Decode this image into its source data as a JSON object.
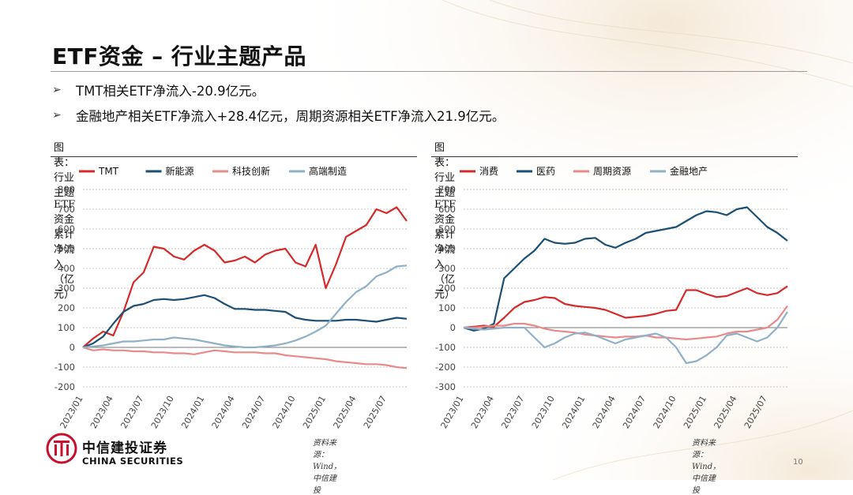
{
  "title": "ETF资金 – 行业主题产品",
  "bullets": [
    "TMT相关ETF净流入-20.9亿元。",
    "金融地产相关ETF净流入+28.4亿元，周期资源相关ETF净流入21.9亿元。"
  ],
  "bullet_icon": "arrow-bullet-icon",
  "logo": {
    "cn": "中信建投证券",
    "en": "CHINA SECURITIES"
  },
  "page_number": "10",
  "colors": {
    "red": "#d42a2a",
    "navy": "#1b4f75",
    "pink": "#e88a8a",
    "lightblue": "#8fb0c6"
  },
  "chart_data": [
    {
      "type": "line",
      "caption": "图表：行业主题ETF资金累计净流入（亿元）",
      "source": "资料来源：Wind，中信建投",
      "x": [
        "2023/01",
        "2023/02",
        "2023/03",
        "2023/04",
        "2023/05",
        "2023/06",
        "2023/07",
        "2023/08",
        "2023/09",
        "2023/10",
        "2023/11",
        "2023/12",
        "2024/01",
        "2024/02",
        "2024/03",
        "2024/04",
        "2024/05",
        "2024/06",
        "2024/07",
        "2024/08",
        "2024/09",
        "2024/10",
        "2024/11",
        "2024/12",
        "2025/01",
        "2025/02",
        "2025/03",
        "2025/04",
        "2025/05",
        "2025/06",
        "2025/07",
        "2025/08",
        "2025/09"
      ],
      "x_ticks": [
        "2023/01",
        "2023/04",
        "2023/07",
        "2023/10",
        "2024/01",
        "2024/04",
        "2024/07",
        "2024/10",
        "2025/01",
        "2025/04",
        "2025/07"
      ],
      "ylim": [
        -200,
        800
      ],
      "yticks": [
        -200,
        -100,
        0,
        100,
        200,
        300,
        400,
        500,
        600,
        700,
        800
      ],
      "legend_position": "top",
      "series": [
        {
          "name": "TMT",
          "color": "#d42a2a",
          "values": [
            0,
            45,
            80,
            60,
            180,
            330,
            380,
            510,
            500,
            460,
            445,
            490,
            520,
            490,
            430,
            440,
            460,
            430,
            470,
            490,
            500,
            430,
            410,
            520,
            300,
            420,
            560,
            590,
            620,
            700,
            680,
            710,
            640
          ]
        },
        {
          "name": "新能源",
          "color": "#1b4f75",
          "values": [
            0,
            20,
            55,
            120,
            180,
            210,
            220,
            240,
            245,
            240,
            245,
            255,
            265,
            250,
            220,
            195,
            195,
            190,
            190,
            185,
            180,
            150,
            140,
            135,
            135,
            135,
            140,
            140,
            135,
            130,
            140,
            150,
            145
          ]
        },
        {
          "name": "科技创新",
          "color": "#e88a8a",
          "values": [
            0,
            -15,
            -10,
            -15,
            -15,
            -20,
            -20,
            -25,
            -25,
            -30,
            -30,
            -35,
            -25,
            -15,
            -20,
            -25,
            -25,
            -25,
            -30,
            -30,
            -40,
            -45,
            -50,
            -55,
            -60,
            -70,
            -75,
            -80,
            -85,
            -85,
            -90,
            -100,
            -105
          ]
        },
        {
          "name": "高端制造",
          "color": "#8fb0c6",
          "values": [
            0,
            5,
            10,
            20,
            30,
            30,
            35,
            40,
            40,
            50,
            45,
            40,
            30,
            20,
            10,
            5,
            0,
            0,
            5,
            10,
            20,
            35,
            55,
            80,
            110,
            170,
            230,
            280,
            310,
            360,
            380,
            410,
            415
          ]
        }
      ]
    },
    {
      "type": "line",
      "caption": "图表：行业主题ETF资金累计净流入（亿元）",
      "source": "资料来源：Wind，中信建投",
      "x": [
        "2023/01",
        "2023/02",
        "2023/03",
        "2023/04",
        "2023/05",
        "2023/06",
        "2023/07",
        "2023/08",
        "2023/09",
        "2023/10",
        "2023/11",
        "2023/12",
        "2024/01",
        "2024/02",
        "2024/03",
        "2024/04",
        "2024/05",
        "2024/06",
        "2024/07",
        "2024/08",
        "2024/09",
        "2024/10",
        "2024/11",
        "2024/12",
        "2025/01",
        "2025/02",
        "2025/03",
        "2025/04",
        "2025/05",
        "2025/06",
        "2025/07",
        "2025/08",
        "2025/09"
      ],
      "x_ticks": [
        "2023/01",
        "2023/04",
        "2023/07",
        "2023/10",
        "2024/01",
        "2024/04",
        "2024/07",
        "2024/10",
        "2025/01",
        "2025/04",
        "2025/07"
      ],
      "ylim": [
        -300,
        700
      ],
      "yticks": [
        -300,
        -200,
        -100,
        0,
        100,
        200,
        300,
        400,
        500,
        600,
        700
      ],
      "legend_position": "top",
      "series": [
        {
          "name": "消费",
          "color": "#d42a2a",
          "values": [
            0,
            5,
            10,
            5,
            50,
            100,
            130,
            140,
            155,
            150,
            120,
            110,
            105,
            100,
            90,
            70,
            50,
            55,
            60,
            70,
            85,
            90,
            190,
            190,
            170,
            155,
            160,
            180,
            200,
            175,
            165,
            175,
            210
          ]
        },
        {
          "name": "医药",
          "color": "#1b4f75",
          "values": [
            0,
            -15,
            -5,
            20,
            250,
            300,
            350,
            390,
            450,
            430,
            425,
            430,
            450,
            455,
            420,
            405,
            430,
            450,
            480,
            490,
            500,
            510,
            540,
            570,
            590,
            585,
            570,
            600,
            610,
            560,
            510,
            480,
            440
          ]
        },
        {
          "name": "周期资源",
          "color": "#e88a8a",
          "values": [
            0,
            0,
            5,
            10,
            10,
            20,
            20,
            10,
            -5,
            -15,
            -20,
            -25,
            -35,
            -40,
            -45,
            -50,
            -45,
            -45,
            -40,
            -50,
            -50,
            -55,
            -60,
            -55,
            -50,
            -45,
            -30,
            -20,
            -20,
            -10,
            0,
            40,
            110
          ]
        },
        {
          "name": "金融地产",
          "color": "#8fb0c6",
          "values": [
            0,
            -5,
            -10,
            -5,
            0,
            0,
            0,
            -50,
            -100,
            -80,
            -50,
            -30,
            -25,
            -40,
            -60,
            -80,
            -60,
            -50,
            -40,
            -30,
            -50,
            -100,
            -180,
            -170,
            -140,
            -100,
            -40,
            -30,
            -50,
            -70,
            -50,
            0,
            80
          ]
        }
      ]
    }
  ]
}
